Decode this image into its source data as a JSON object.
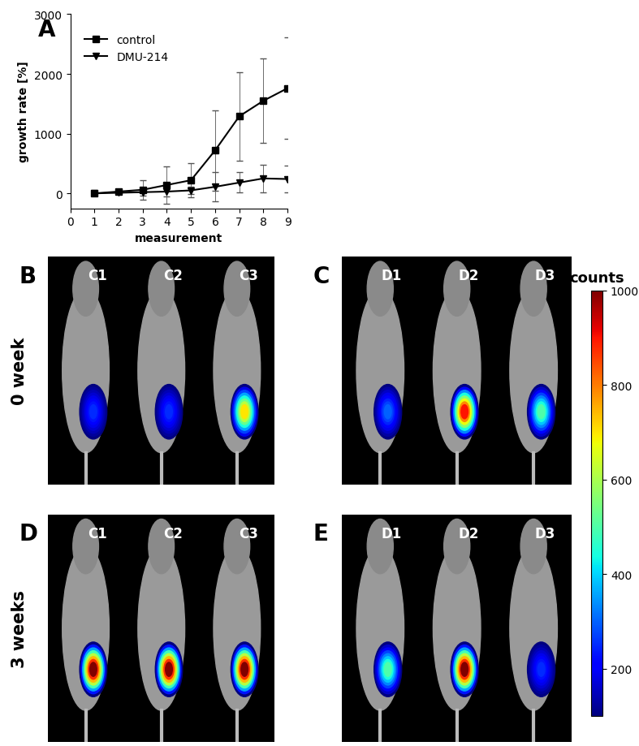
{
  "chart_data": {
    "type": "line",
    "x": [
      1,
      2,
      3,
      4,
      5,
      6,
      7,
      8,
      9
    ],
    "xlabel": "measurement",
    "ylabel": "growth rate [%]",
    "xlim": [
      0,
      9
    ],
    "xticks": [
      0,
      1,
      2,
      3,
      4,
      5,
      6,
      7,
      8,
      9
    ],
    "ylim": [
      -250,
      3000
    ],
    "yticks": [
      0,
      1000,
      2000,
      3000
    ],
    "legend": "upper left",
    "grid": false,
    "series": [
      {
        "name": "control",
        "color": "#000000",
        "marker": "square",
        "line_style": "solid",
        "values": [
          0,
          30,
          60,
          140,
          220,
          720,
          1290,
          1550,
          1760
        ],
        "errors": [
          0,
          20,
          160,
          310,
          280,
          670,
          740,
          710,
          850
        ]
      },
      {
        "name": "DMU-214",
        "color": "#000000",
        "marker": "triangle_down",
        "line_style": "solid",
        "values": [
          0,
          10,
          20,
          30,
          50,
          110,
          180,
          250,
          240
        ],
        "errors": [
          0,
          10,
          60,
          80,
          60,
          240,
          170,
          230,
          230
        ]
      }
    ]
  },
  "chart_letter": "A",
  "rows": [
    {
      "label": "0 week",
      "panels": [
        {
          "letter": "B",
          "mice": [
            {
              "label": "C1",
              "peak": 250
            },
            {
              "label": "C2",
              "peak": 250
            },
            {
              "label": "C3",
              "peak": 700
            }
          ]
        },
        {
          "letter": "C",
          "mice": [
            {
              "label": "D1",
              "peak": 300
            },
            {
              "label": "D2",
              "peak": 900
            },
            {
              "label": "D3",
              "peak": 500
            }
          ]
        }
      ]
    },
    {
      "label": "3 weeks",
      "panels": [
        {
          "letter": "D",
          "mice": [
            {
              "label": "C1",
              "peak": 1000
            },
            {
              "label": "C2",
              "peak": 1000
            },
            {
              "label": "C3",
              "peak": 1000
            }
          ]
        },
        {
          "letter": "E",
          "mice": [
            {
              "label": "D1",
              "peak": 500
            },
            {
              "label": "D2",
              "peak": 1000
            },
            {
              "label": "D3",
              "peak": 250
            }
          ]
        }
      ]
    }
  ],
  "colorbar": {
    "label": "counts",
    "range": [
      100,
      1000
    ],
    "ticks": [
      200,
      400,
      600,
      800,
      1000
    ]
  }
}
